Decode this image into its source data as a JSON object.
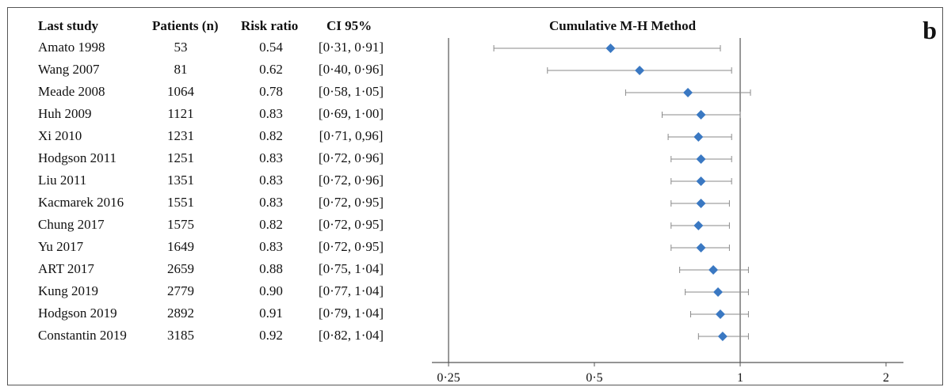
{
  "panel_label": "b",
  "chart_title": "Cumulative M-H Method",
  "columns": {
    "study": "Last study",
    "patients": "Patients (n)",
    "rr": "Risk ratio",
    "ci": "CI 95%"
  },
  "chart_data": {
    "type": "scatter",
    "subtype": "forest-plot",
    "title": "Cumulative M-H Method",
    "x_scale": "log",
    "xlim": [
      0.25,
      2
    ],
    "x_ticks": [
      0.25,
      0.5,
      1,
      2
    ],
    "x_tick_labels": [
      "0·25",
      "0·5",
      "1",
      "2"
    ],
    "reference_line": 1,
    "marker_color": "#3a78c2",
    "rows": [
      {
        "study": "Amato 1998",
        "patients": "53",
        "rr": "0.54",
        "ci": "[0·31, 0·91]",
        "est": 0.54,
        "lo": 0.31,
        "hi": 0.91
      },
      {
        "study": "Wang 2007",
        "patients": "81",
        "rr": "0.62",
        "ci": "[0·40, 0·96]",
        "est": 0.62,
        "lo": 0.4,
        "hi": 0.96
      },
      {
        "study": "Meade 2008",
        "patients": "1064",
        "rr": "0.78",
        "ci": "[0·58, 1·05]",
        "est": 0.78,
        "lo": 0.58,
        "hi": 1.05
      },
      {
        "study": "Huh 2009",
        "patients": "1121",
        "rr": "0.83",
        "ci": "[0·69, 1·00]",
        "est": 0.83,
        "lo": 0.69,
        "hi": 1.0
      },
      {
        "study": "Xi 2010",
        "patients": "1231",
        "rr": "0.82",
        "ci": "[0·71, 0,96]",
        "est": 0.82,
        "lo": 0.71,
        "hi": 0.96
      },
      {
        "study": "Hodgson 2011",
        "patients": "1251",
        "rr": "0.83",
        "ci": "[0·72, 0·96]",
        "est": 0.83,
        "lo": 0.72,
        "hi": 0.96
      },
      {
        "study": "Liu 2011",
        "patients": "1351",
        "rr": "0.83",
        "ci": "[0·72, 0·96]",
        "est": 0.83,
        "lo": 0.72,
        "hi": 0.96
      },
      {
        "study": "Kacmarek 2016",
        "patients": "1551",
        "rr": "0.83",
        "ci": "[0·72, 0·95]",
        "est": 0.83,
        "lo": 0.72,
        "hi": 0.95
      },
      {
        "study": "Chung 2017",
        "patients": "1575",
        "rr": "0.82",
        "ci": "[0·72, 0·95]",
        "est": 0.82,
        "lo": 0.72,
        "hi": 0.95
      },
      {
        "study": "Yu 2017",
        "patients": "1649",
        "rr": "0.83",
        "ci": "[0·72, 0·95]",
        "est": 0.83,
        "lo": 0.72,
        "hi": 0.95
      },
      {
        "study": "ART 2017",
        "patients": "2659",
        "rr": "0.88",
        "ci": "[0·75, 1·04]",
        "est": 0.88,
        "lo": 0.75,
        "hi": 1.04
      },
      {
        "study": "Kung 2019",
        "patients": "2779",
        "rr": "0.90",
        "ci": "[0·77, 1·04]",
        "est": 0.9,
        "lo": 0.77,
        "hi": 1.04
      },
      {
        "study": "Hodgson 2019",
        "patients": "2892",
        "rr": "0.91",
        "ci": "[0·79, 1·04]",
        "est": 0.91,
        "lo": 0.79,
        "hi": 1.04
      },
      {
        "study": "Constantin 2019",
        "patients": "3185",
        "rr": "0.92",
        "ci": "[0·82, 1·04]",
        "est": 0.92,
        "lo": 0.82,
        "hi": 1.04
      }
    ]
  }
}
